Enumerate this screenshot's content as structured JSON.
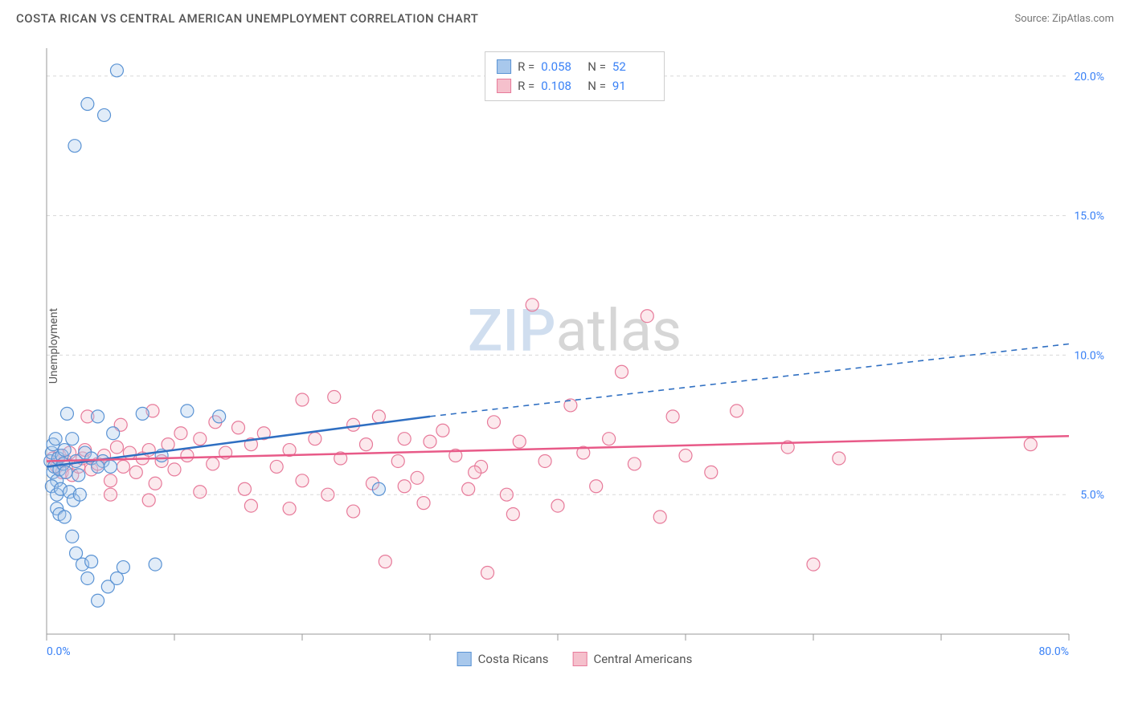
{
  "header": {
    "title": "COSTA RICAN VS CENTRAL AMERICAN UNEMPLOYMENT CORRELATION CHART",
    "source": "Source: ZipAtlas.com"
  },
  "watermark": {
    "part1": "ZIP",
    "part2": "atlas"
  },
  "y_axis_label": "Unemployment",
  "chart": {
    "type": "scatter",
    "background_color": "#ffffff",
    "grid_color": "#d8d8d8",
    "axis_line_color": "#999999",
    "tick_color": "#999999",
    "tick_label_color": "#3b82f6",
    "xlim": [
      0,
      80
    ],
    "ylim": [
      0,
      21
    ],
    "x_ticks": [
      0,
      10,
      20,
      30,
      40,
      50,
      60,
      70,
      80
    ],
    "x_tick_labels": {
      "0": "0.0%",
      "80": "80.0%"
    },
    "y_gridlines": [
      5,
      10,
      15,
      20
    ],
    "y_tick_labels": {
      "5": "5.0%",
      "10": "10.0%",
      "15": "15.0%",
      "20": "20.0%"
    },
    "marker_radius": 8,
    "marker_stroke_width": 1.2,
    "marker_fill_opacity": 0.35,
    "trend_line_width": 2.5,
    "series": [
      {
        "id": "costa_ricans",
        "label": "Costa Ricans",
        "color_fill": "#a8c8ec",
        "color_stroke": "#5a93d4",
        "color_line": "#2f6fc2",
        "R": "0.058",
        "N": "52",
        "trend": {
          "x1": 0,
          "y1": 6.0,
          "x2": 30,
          "y2": 7.8,
          "dash_x2": 80,
          "dash_y2": 10.4
        },
        "points": [
          [
            0.3,
            6.2
          ],
          [
            0.4,
            6.5
          ],
          [
            0.5,
            5.8
          ],
          [
            0.6,
            6.0
          ],
          [
            0.8,
            5.5
          ],
          [
            0.5,
            6.8
          ],
          [
            0.7,
            7.0
          ],
          [
            0.9,
            6.3
          ],
          [
            1.0,
            5.9
          ],
          [
            1.2,
            6.4
          ],
          [
            0.4,
            5.3
          ],
          [
            0.8,
            5.0
          ],
          [
            1.1,
            5.2
          ],
          [
            1.3,
            6.1
          ],
          [
            1.5,
            5.8
          ],
          [
            1.4,
            6.6
          ],
          [
            1.6,
            7.9
          ],
          [
            2.0,
            7.0
          ],
          [
            2.3,
            6.2
          ],
          [
            2.5,
            5.7
          ],
          [
            0.8,
            4.5
          ],
          [
            1.0,
            4.3
          ],
          [
            1.4,
            4.2
          ],
          [
            1.8,
            5.1
          ],
          [
            2.1,
            4.8
          ],
          [
            2.6,
            5.0
          ],
          [
            3.0,
            6.5
          ],
          [
            3.5,
            6.3
          ],
          [
            4.0,
            7.8
          ],
          [
            4.4,
            6.2
          ],
          [
            5.0,
            6.0
          ],
          [
            5.2,
            7.2
          ],
          [
            7.5,
            7.9
          ],
          [
            9.0,
            6.4
          ],
          [
            11.0,
            8.0
          ],
          [
            13.5,
            7.8
          ],
          [
            26.0,
            5.2
          ],
          [
            2.0,
            3.5
          ],
          [
            2.3,
            2.9
          ],
          [
            2.8,
            2.5
          ],
          [
            3.2,
            2.0
          ],
          [
            3.5,
            2.6
          ],
          [
            4.0,
            1.2
          ],
          [
            4.8,
            1.7
          ],
          [
            5.5,
            2.0
          ],
          [
            6.0,
            2.4
          ],
          [
            8.5,
            2.5
          ],
          [
            2.2,
            17.5
          ],
          [
            3.2,
            19.0
          ],
          [
            4.5,
            18.6
          ],
          [
            5.5,
            20.2
          ],
          [
            4.0,
            6.0
          ]
        ]
      },
      {
        "id": "central_americans",
        "label": "Central Americans",
        "color_fill": "#f5c0cc",
        "color_stroke": "#e77a9a",
        "color_line": "#e85a88",
        "R": "0.108",
        "N": "91",
        "trend": {
          "x1": 0,
          "y1": 6.2,
          "x2": 80,
          "y2": 7.1
        },
        "points": [
          [
            0.5,
            6.3
          ],
          [
            0.8,
            6.0
          ],
          [
            1.0,
            6.4
          ],
          [
            1.2,
            5.8
          ],
          [
            1.5,
            6.2
          ],
          [
            1.8,
            6.5
          ],
          [
            2.0,
            5.7
          ],
          [
            2.5,
            6.0
          ],
          [
            2.8,
            6.3
          ],
          [
            3.0,
            6.6
          ],
          [
            3.5,
            5.9
          ],
          [
            4.0,
            6.1
          ],
          [
            4.5,
            6.4
          ],
          [
            5.0,
            5.5
          ],
          [
            5.5,
            6.7
          ],
          [
            6.0,
            6.0
          ],
          [
            6.5,
            6.5
          ],
          [
            7.0,
            5.8
          ],
          [
            7.5,
            6.3
          ],
          [
            8.0,
            6.6
          ],
          [
            8.5,
            5.4
          ],
          [
            9.0,
            6.2
          ],
          [
            9.5,
            6.8
          ],
          [
            10.0,
            5.9
          ],
          [
            11.0,
            6.4
          ],
          [
            12.0,
            7.0
          ],
          [
            13.0,
            6.1
          ],
          [
            14.0,
            6.5
          ],
          [
            15.0,
            7.4
          ],
          [
            16.0,
            6.8
          ],
          [
            17.0,
            7.2
          ],
          [
            18.0,
            6.0
          ],
          [
            19.0,
            6.6
          ],
          [
            20.0,
            8.4
          ],
          [
            21.0,
            7.0
          ],
          [
            22.5,
            8.5
          ],
          [
            23.0,
            6.3
          ],
          [
            24.0,
            7.5
          ],
          [
            25.0,
            6.8
          ],
          [
            26.0,
            7.8
          ],
          [
            27.5,
            6.2
          ],
          [
            28.0,
            7.0
          ],
          [
            29.0,
            5.6
          ],
          [
            30.0,
            6.9
          ],
          [
            31.0,
            7.3
          ],
          [
            32.0,
            6.4
          ],
          [
            33.0,
            5.2
          ],
          [
            34.0,
            6.0
          ],
          [
            35.0,
            7.6
          ],
          [
            36.0,
            5.0
          ],
          [
            37.0,
            6.9
          ],
          [
            38.0,
            11.8
          ],
          [
            39.0,
            6.2
          ],
          [
            40.0,
            4.6
          ],
          [
            41.0,
            8.2
          ],
          [
            42.0,
            6.5
          ],
          [
            43.0,
            5.3
          ],
          [
            44.0,
            7.0
          ],
          [
            45.0,
            9.4
          ],
          [
            46.0,
            6.1
          ],
          [
            47.0,
            11.4
          ],
          [
            48.0,
            4.2
          ],
          [
            49.0,
            7.8
          ],
          [
            50.0,
            6.4
          ],
          [
            52.0,
            5.8
          ],
          [
            54.0,
            8.0
          ],
          [
            58.0,
            6.7
          ],
          [
            60.0,
            2.5
          ],
          [
            62.0,
            6.3
          ],
          [
            77.0,
            6.8
          ],
          [
            5.0,
            5.0
          ],
          [
            8.0,
            4.8
          ],
          [
            12.0,
            5.1
          ],
          [
            16.0,
            4.6
          ],
          [
            20.0,
            5.5
          ],
          [
            24.0,
            4.4
          ],
          [
            28.0,
            5.3
          ],
          [
            19.0,
            4.5
          ],
          [
            22.0,
            5.0
          ],
          [
            25.5,
            5.4
          ],
          [
            29.5,
            4.7
          ],
          [
            33.5,
            5.8
          ],
          [
            26.5,
            2.6
          ],
          [
            34.5,
            2.2
          ],
          [
            36.5,
            4.3
          ],
          [
            15.5,
            5.2
          ],
          [
            3.2,
            7.8
          ],
          [
            5.8,
            7.5
          ],
          [
            8.3,
            8.0
          ],
          [
            10.5,
            7.2
          ],
          [
            13.2,
            7.6
          ]
        ]
      }
    ]
  },
  "stats_legend_labels": {
    "R": "R =",
    "N": "N ="
  },
  "legend_series": [
    {
      "label": "Costa Ricans",
      "fill": "#a8c8ec",
      "stroke": "#5a93d4"
    },
    {
      "label": "Central Americans",
      "fill": "#f5c0cc",
      "stroke": "#e77a9a"
    }
  ]
}
